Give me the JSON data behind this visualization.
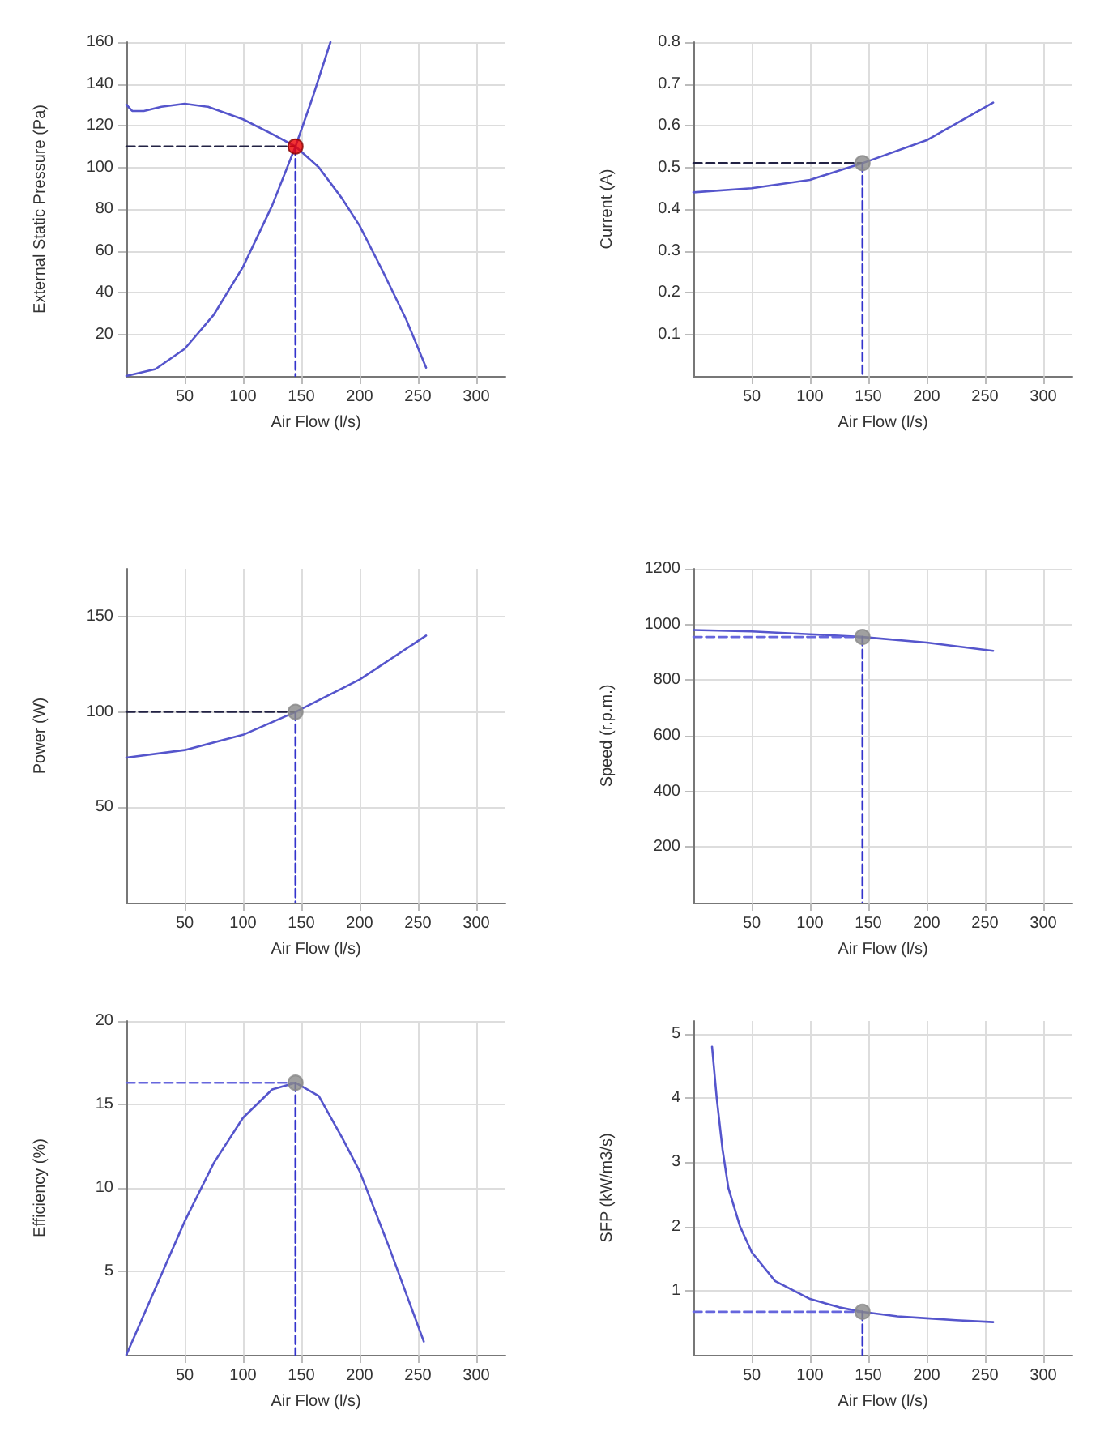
{
  "chart_data": [
    {
      "type": "line",
      "xlabel": "Air Flow (l/s)",
      "ylabel": "External Static Pressure (Pa)",
      "xlim": [
        0,
        325
      ],
      "xticks": [
        50,
        100,
        150,
        200,
        250,
        300
      ],
      "ylim": [
        0,
        160
      ],
      "yticks": [
        20,
        40,
        60,
        80,
        100,
        120,
        140,
        160
      ],
      "grid": true,
      "series": [
        {
          "color": "#5555cc",
          "marker": "none",
          "line_style": "solid",
          "x": [
            0,
            5,
            15,
            30,
            50,
            70,
            100,
            125,
            145,
            165,
            185,
            200,
            220,
            240,
            257
          ],
          "values": [
            130,
            127,
            127,
            129,
            130.5,
            129,
            123,
            116,
            110,
            100,
            85,
            72,
            50,
            27,
            4
          ]
        },
        {
          "color": "#5555cc",
          "marker": "none",
          "line_style": "solid",
          "x": [
            0,
            25,
            50,
            75,
            100,
            125,
            145,
            160,
            175
          ],
          "values": [
            0,
            3.3,
            13,
            29.4,
            52.3,
            81.7,
            110,
            134,
            160
          ]
        },
        {
          "type": "line",
          "color": "#222244",
          "marker": "none",
          "line_style": "dashed",
          "x": [
            0,
            145
          ],
          "values": [
            110,
            110
          ]
        },
        {
          "type": "line",
          "color": "#3333cc",
          "marker": "none",
          "line_style": "dashed",
          "x": [
            145,
            145
          ],
          "values": [
            110,
            0
          ]
        },
        {
          "type": "scatter",
          "color": "#ee0000",
          "marker": "circle",
          "x": [
            145
          ],
          "values": [
            110
          ]
        }
      ]
    },
    {
      "type": "line",
      "xlabel": "Air Flow (l/s)",
      "ylabel": "Current (A)",
      "xlim": [
        0,
        325
      ],
      "xticks": [
        50,
        100,
        150,
        200,
        250,
        300
      ],
      "ylim": [
        0,
        0.8
      ],
      "yticks": [
        0.1,
        0.2,
        0.3,
        0.4,
        0.5,
        0.6,
        0.7,
        0.8
      ],
      "grid": true,
      "series": [
        {
          "color": "#5555cc",
          "marker": "none",
          "line_style": "solid",
          "x": [
            0,
            50,
            100,
            145,
            200,
            257
          ],
          "values": [
            0.44,
            0.45,
            0.47,
            0.51,
            0.565,
            0.655
          ]
        },
        {
          "type": "line",
          "color": "#222244",
          "marker": "none",
          "line_style": "dashed",
          "x": [
            0,
            145
          ],
          "values": [
            0.51,
            0.51
          ]
        },
        {
          "type": "line",
          "color": "#3333cc",
          "marker": "none",
          "line_style": "dashed",
          "x": [
            145,
            145
          ],
          "values": [
            0.51,
            0
          ]
        },
        {
          "type": "scatter",
          "color": "#888888",
          "marker": "circle",
          "x": [
            145
          ],
          "values": [
            0.51
          ]
        }
      ]
    },
    {
      "type": "line",
      "xlabel": "Air Flow (l/s)",
      "ylabel": "Power (W)",
      "xlim": [
        0,
        325
      ],
      "xticks": [
        50,
        100,
        150,
        200,
        250,
        300
      ],
      "ylim": [
        0,
        175
      ],
      "yticks": [
        50,
        100,
        150
      ],
      "grid": true,
      "series": [
        {
          "color": "#5555cc",
          "marker": "none",
          "line_style": "solid",
          "x": [
            0,
            50,
            100,
            145,
            200,
            257
          ],
          "values": [
            76,
            80,
            88,
            100,
            117,
            140
          ]
        },
        {
          "type": "line",
          "color": "#222244",
          "marker": "none",
          "line_style": "dashed",
          "x": [
            0,
            145
          ],
          "values": [
            100,
            100
          ]
        },
        {
          "type": "line",
          "color": "#3333cc",
          "marker": "none",
          "line_style": "dashed",
          "x": [
            145,
            145
          ],
          "values": [
            100,
            0
          ]
        },
        {
          "type": "scatter",
          "color": "#888888",
          "marker": "circle",
          "x": [
            145
          ],
          "values": [
            100
          ]
        }
      ]
    },
    {
      "type": "line",
      "xlabel": "Air Flow (l/s)",
      "ylabel": "Speed (r.p.m.)",
      "xlim": [
        0,
        325
      ],
      "xticks": [
        50,
        100,
        150,
        200,
        250,
        300
      ],
      "ylim": [
        0,
        1200
      ],
      "yticks": [
        200,
        400,
        600,
        800,
        1000,
        1200
      ],
      "grid": true,
      "series": [
        {
          "color": "#5555cc",
          "marker": "none",
          "line_style": "solid",
          "x": [
            0,
            50,
            100,
            145,
            200,
            257
          ],
          "values": [
            980,
            975,
            965,
            955,
            935,
            905
          ]
        },
        {
          "type": "line",
          "color": "#6666dd",
          "marker": "none",
          "line_style": "dashed",
          "x": [
            0,
            145
          ],
          "values": [
            955,
            955
          ]
        },
        {
          "type": "line",
          "color": "#3333cc",
          "marker": "none",
          "line_style": "dashed",
          "x": [
            145,
            145
          ],
          "values": [
            955,
            0
          ]
        },
        {
          "type": "scatter",
          "color": "#888888",
          "marker": "circle",
          "x": [
            145
          ],
          "values": [
            955
          ]
        }
      ]
    },
    {
      "type": "line",
      "xlabel": "Air Flow (l/s)",
      "ylabel": "Efficiency (%)",
      "xlim": [
        0,
        325
      ],
      "xticks": [
        50,
        100,
        150,
        200,
        250,
        300
      ],
      "ylim": [
        0,
        20
      ],
      "yticks": [
        5,
        10,
        15,
        20
      ],
      "grid": true,
      "series": [
        {
          "color": "#5555cc",
          "marker": "none",
          "line_style": "solid",
          "x": [
            0,
            25,
            50,
            75,
            100,
            125,
            145,
            165,
            185,
            200,
            225,
            255
          ],
          "values": [
            0,
            4,
            8,
            11.5,
            14.2,
            15.9,
            16.3,
            15.5,
            13,
            11,
            6.5,
            0.8
          ]
        },
        {
          "type": "line",
          "color": "#6666dd",
          "marker": "none",
          "line_style": "dashed",
          "x": [
            0,
            145
          ],
          "values": [
            16.3,
            16.3
          ]
        },
        {
          "type": "line",
          "color": "#3333cc",
          "marker": "none",
          "line_style": "dashed",
          "x": [
            145,
            145
          ],
          "values": [
            16.3,
            0
          ]
        },
        {
          "type": "scatter",
          "color": "#888888",
          "marker": "circle",
          "x": [
            145
          ],
          "values": [
            16.3
          ]
        }
      ]
    },
    {
      "type": "line",
      "xlabel": "Air Flow (l/s)",
      "ylabel": "SFP (kW/m3/s)",
      "xlim": [
        0,
        325
      ],
      "xticks": [
        50,
        100,
        150,
        200,
        250,
        300
      ],
      "ylim": [
        0,
        5.2
      ],
      "yticks": [
        1,
        2,
        3,
        4,
        5
      ],
      "grid": true,
      "series": [
        {
          "color": "#5555cc",
          "marker": "none",
          "line_style": "solid",
          "x": [
            16,
            20,
            25,
            30,
            40,
            50,
            70,
            100,
            125,
            145,
            175,
            200,
            225,
            257
          ],
          "values": [
            4.8,
            4.0,
            3.2,
            2.6,
            2.0,
            1.6,
            1.15,
            0.87,
            0.74,
            0.67,
            0.6,
            0.57,
            0.54,
            0.51
          ]
        },
        {
          "type": "line",
          "color": "#6666dd",
          "marker": "none",
          "line_style": "dashed",
          "x": [
            0,
            145
          ],
          "values": [
            0.67,
            0.67
          ]
        },
        {
          "type": "line",
          "color": "#3333cc",
          "marker": "none",
          "line_style": "dashed",
          "x": [
            145,
            145
          ],
          "values": [
            0.67,
            0
          ]
        },
        {
          "type": "scatter",
          "color": "#888888",
          "marker": "circle",
          "x": [
            145
          ],
          "values": [
            0.67
          ]
        }
      ]
    }
  ]
}
